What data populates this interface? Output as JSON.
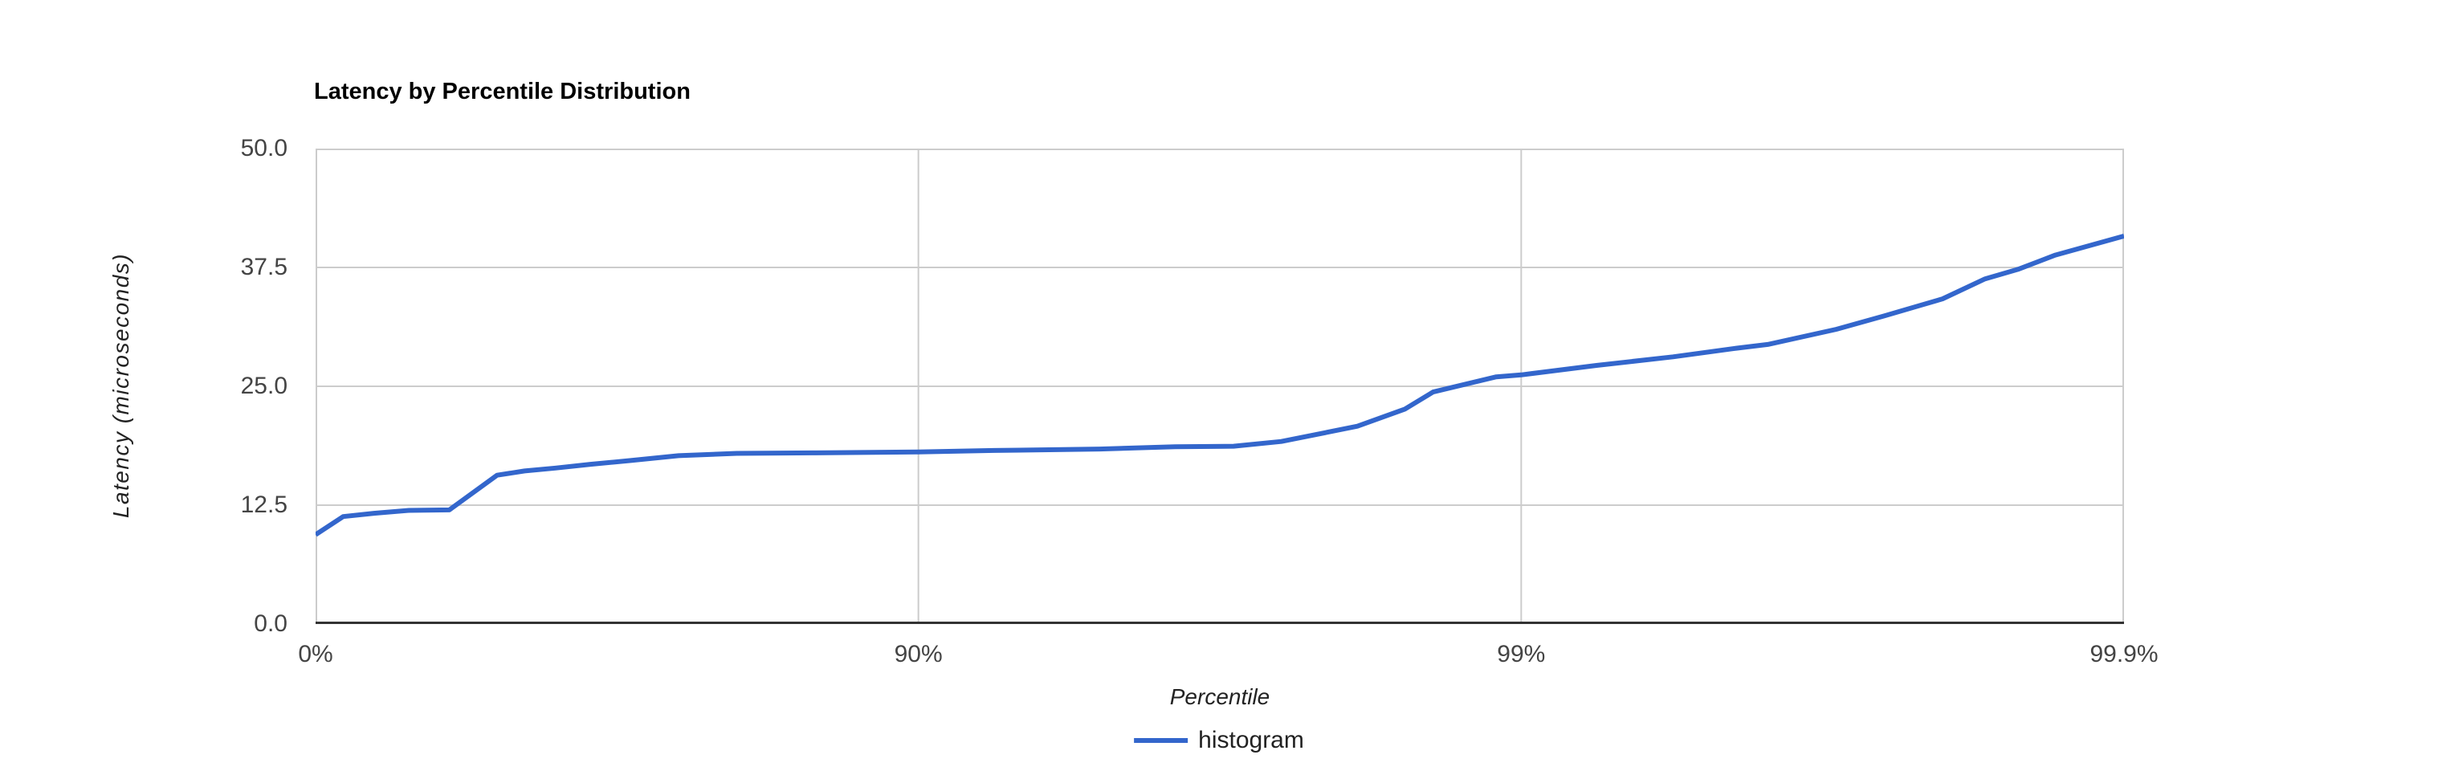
{
  "page": {
    "background": "#ffffff"
  },
  "chart_data": {
    "type": "line",
    "title": "Latency by Percentile Distribution",
    "xlabel": "Percentile",
    "ylabel": "Latency (microseconds)",
    "x_axis": {
      "scale": "log-percentile (x = log10(1/(1-p)))",
      "decades": 3,
      "ticks": [
        {
          "label": "0%",
          "decade": 0
        },
        {
          "label": "90%",
          "decade": 1
        },
        {
          "label": "99%",
          "decade": 2
        },
        {
          "label": "99.9%",
          "decade": 3
        }
      ]
    },
    "y_axis": {
      "min": 0,
      "max": 50,
      "tick_values": [
        0,
        12.5,
        25,
        37.5,
        50
      ],
      "tick_labels": [
        "0.0",
        "12.5",
        "25.0",
        "37.5",
        "50.0"
      ]
    },
    "grid": true,
    "legend": {
      "position": "bottom",
      "label": "histogram"
    },
    "series": [
      {
        "name": "histogram",
        "color": "#3366cc",
        "points_percentile_vs_microseconds": [
          [
            0,
            9.4
          ],
          [
            10,
            11.3
          ],
          [
            20,
            11.65
          ],
          [
            30,
            11.95
          ],
          [
            40,
            12.0
          ],
          [
            50,
            15.65
          ],
          [
            55,
            16.1
          ],
          [
            60,
            16.4
          ],
          [
            65,
            16.8
          ],
          [
            70,
            17.2
          ],
          [
            75,
            17.7
          ],
          [
            80,
            17.95
          ],
          [
            85,
            18.0
          ],
          [
            90,
            18.1
          ],
          [
            92.5,
            18.25
          ],
          [
            95,
            18.4
          ],
          [
            96.25,
            18.65
          ],
          [
            97,
            18.7
          ],
          [
            97.5,
            19.2
          ],
          [
            98.13,
            20.8
          ],
          [
            98.44,
            22.6
          ],
          [
            98.6,
            24.4
          ],
          [
            98.9,
            26.0
          ],
          [
            99,
            26.2
          ],
          [
            99.25,
            27.2
          ],
          [
            99.44,
            28.1
          ],
          [
            99.56,
            29.0
          ],
          [
            99.61,
            29.4
          ],
          [
            99.7,
            31.0
          ],
          [
            99.75,
            32.4
          ],
          [
            99.8,
            34.2
          ],
          [
            99.83,
            36.3
          ],
          [
            99.85,
            37.3
          ],
          [
            99.87,
            38.8
          ],
          [
            99.9,
            40.8
          ]
        ]
      }
    ]
  },
  "colors": {
    "line": "#3366cc",
    "grid": "#cccccc",
    "baseline": "#333333",
    "tick_text": "#444444",
    "axis_title_text": "#222222",
    "title_text": "#000000"
  }
}
